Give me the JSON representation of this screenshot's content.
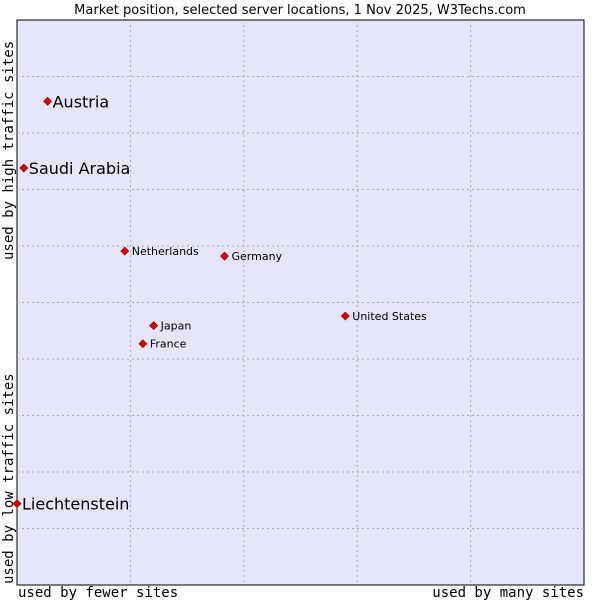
{
  "chart_data": {
    "type": "scatter",
    "title": "Market position, selected server locations, 1 Nov 2025, W3Techs.com",
    "xlabel_left": "used by fewer sites",
    "xlabel_right": "used by many sites",
    "ylabel_low": "used by low traffic sites",
    "ylabel_high": "used by high traffic sites",
    "xlim": [
      0,
      100
    ],
    "ylim": [
      0,
      100
    ],
    "grid": true,
    "colors": {
      "plot_bg": "#e4e6f8",
      "marker": "#e60000",
      "grid": "#aaaaaa"
    },
    "points": [
      {
        "name": "Austria",
        "x": 5.4,
        "y": 85.6,
        "emphasis": true
      },
      {
        "name": "Saudi Arabia",
        "x": 1.2,
        "y": 73.8,
        "emphasis": true
      },
      {
        "name": "Netherlands",
        "x": 19.0,
        "y": 59.1,
        "emphasis": false
      },
      {
        "name": "Germany",
        "x": 36.6,
        "y": 58.2,
        "emphasis": false
      },
      {
        "name": "United States",
        "x": 57.9,
        "y": 47.6,
        "emphasis": false
      },
      {
        "name": "Japan",
        "x": 24.1,
        "y": 45.9,
        "emphasis": false
      },
      {
        "name": "France",
        "x": 22.2,
        "y": 42.7,
        "emphasis": false
      },
      {
        "name": "Liechtenstein",
        "x": 0.0,
        "y": 14.4,
        "emphasis": true
      }
    ]
  }
}
